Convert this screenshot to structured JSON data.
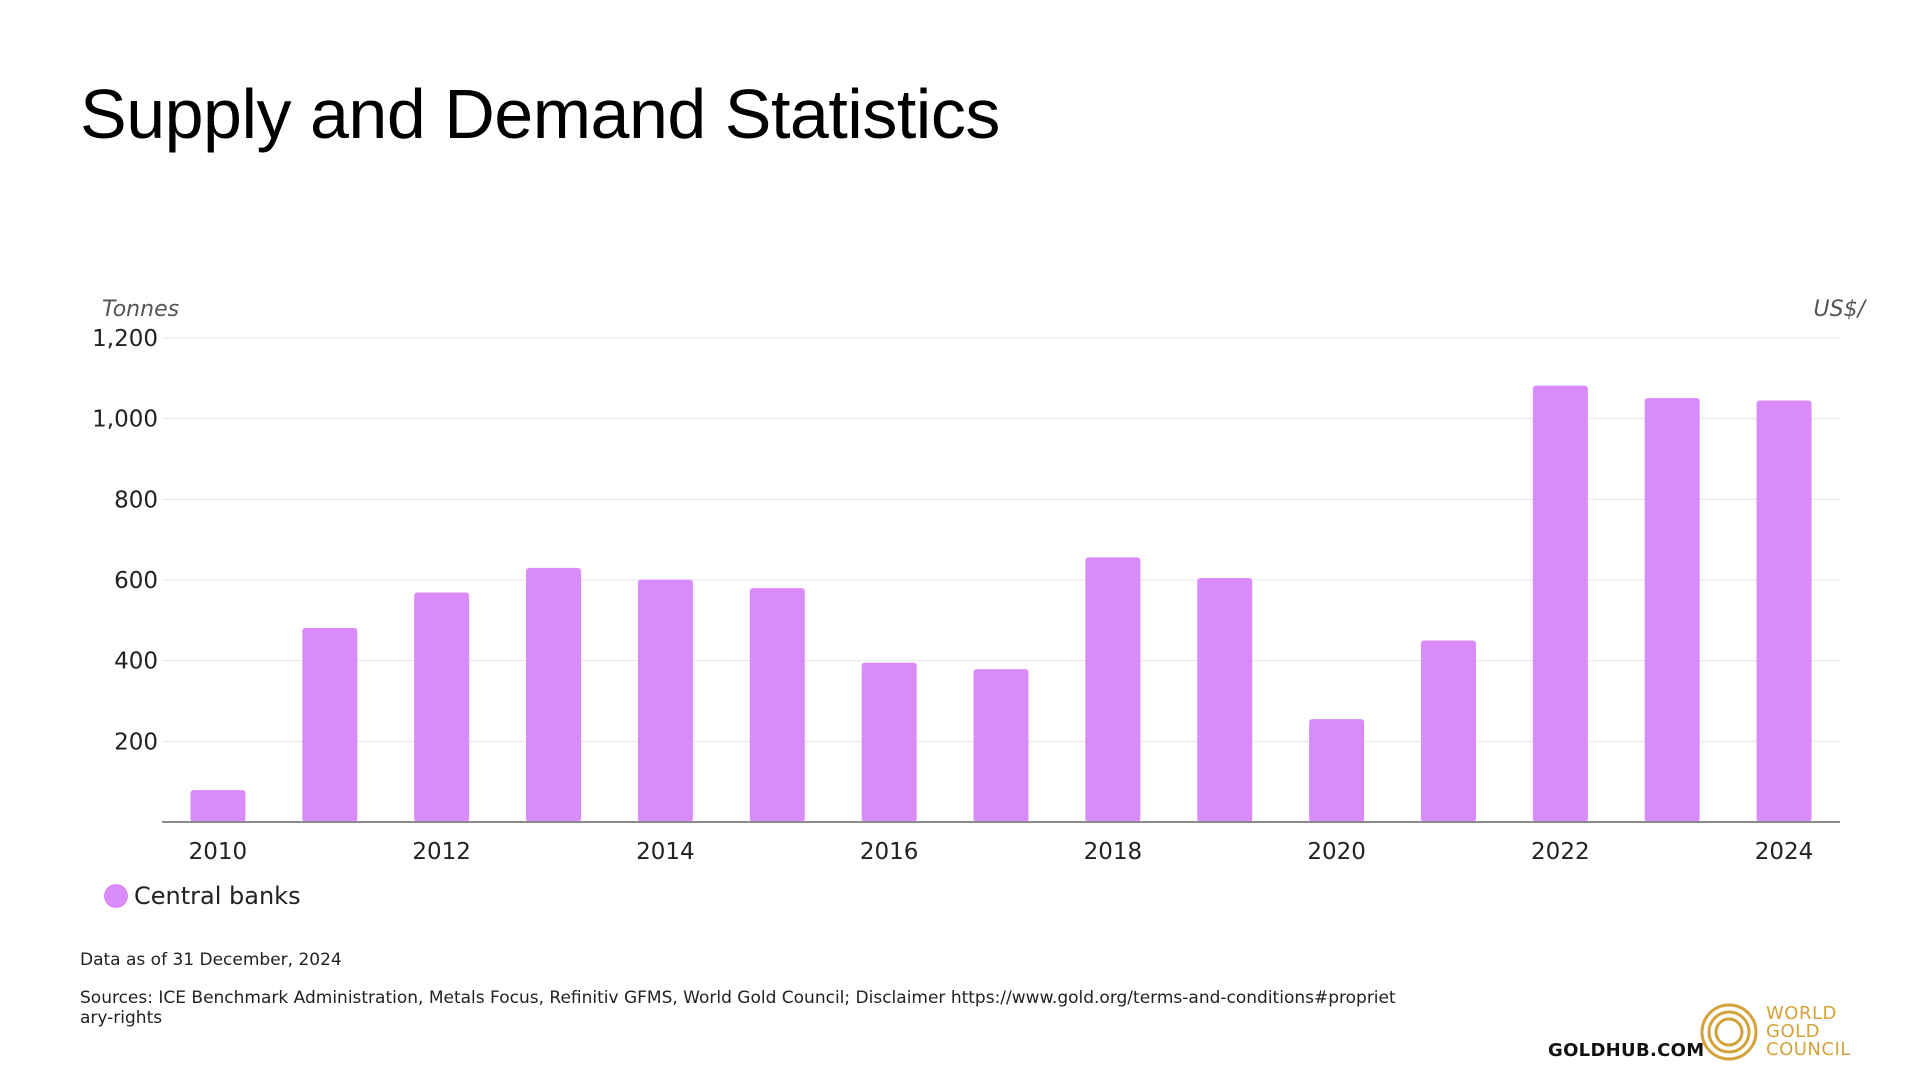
{
  "title": "Supply and Demand Statistics",
  "chart_data": {
    "type": "bar",
    "ylabel": "Tonnes",
    "y2label": "US$/",
    "ylim": [
      0,
      1200
    ],
    "yticks": [
      200,
      400,
      600,
      800,
      1000,
      1200
    ],
    "ytick_labels": [
      "200",
      "400",
      "600",
      "800",
      "1,000",
      "1,200"
    ],
    "xtick_labels": [
      "2010",
      "2012",
      "2014",
      "2016",
      "2018",
      "2020",
      "2022",
      "2024"
    ],
    "categories": [
      "2010",
      "2011",
      "2012",
      "2013",
      "2014",
      "2015",
      "2016",
      "2017",
      "2018",
      "2019",
      "2020",
      "2021",
      "2022",
      "2023",
      "2024"
    ],
    "series": [
      {
        "name": "Central banks",
        "values": [
          79,
          481,
          569,
          630,
          601,
          580,
          395,
          379,
          656,
          605,
          255,
          450,
          1082,
          1051,
          1045
        ]
      }
    ],
    "grid": true,
    "legend_position": "bottom-left"
  },
  "legend": {
    "label": "Central banks"
  },
  "colors": {
    "bar": "#DA8BFB",
    "grid": "#E4E4E4",
    "axis": "#8A8A8A",
    "gold": "#D4A23A"
  },
  "footer": {
    "date_note": "Data as of 31 December, 2024",
    "sources": "Sources: ICE Benchmark Administration, Metals Focus, Refinitiv GFMS, World Gold Council; Disclaimer https://www.gold.org/terms-and-conditions#proprietary-rights",
    "site": "GOLDHUB.COM"
  },
  "brand": {
    "line1": "WORLD",
    "line2": "GOLD",
    "line3": "COUNCIL"
  }
}
